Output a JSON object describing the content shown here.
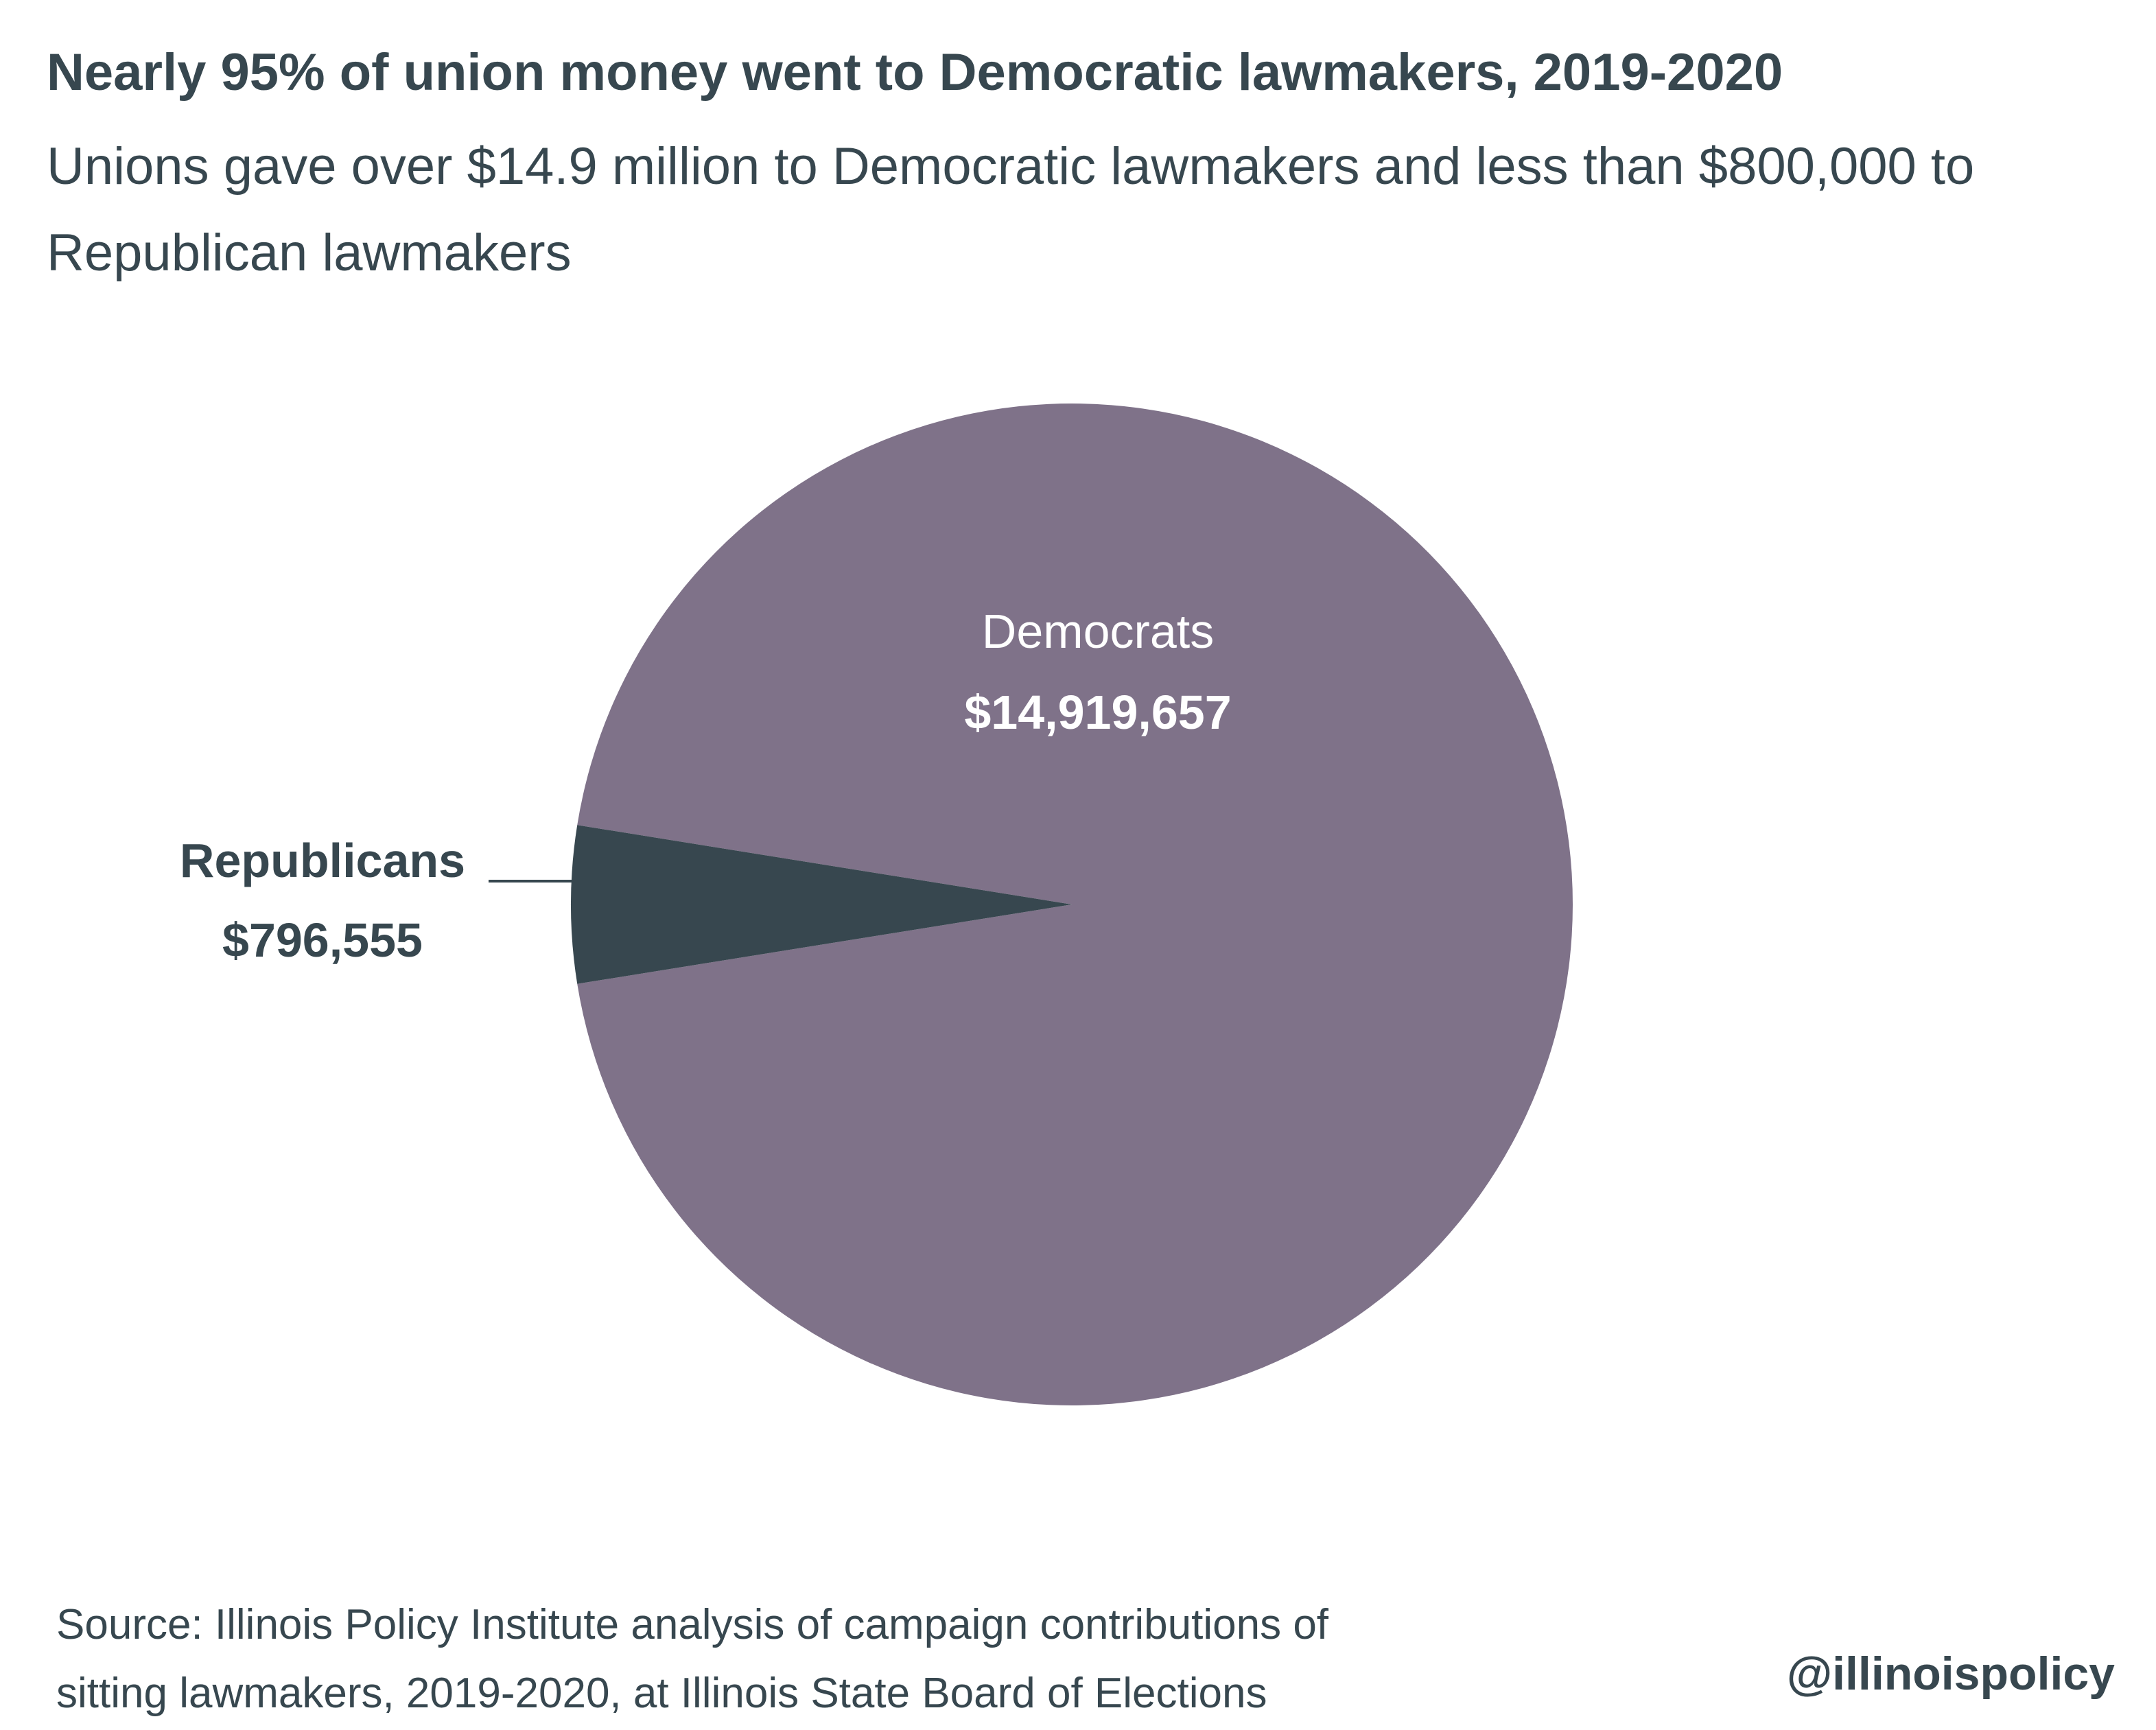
{
  "title": "Nearly 95% of union money went to Democratic lawmakers, 2019-2020",
  "subtitle": "Unions gave over $14.9 million to Democratic lawmakers and less than $800,000 to Republican lawmakers",
  "source": {
    "line1": "Source:  Illinois Policy Institute analysis of campaign contributions of",
    "line2": "sitting lawmakers, 2019-2020, at Illinois State Board of Elections"
  },
  "handle": "@illinoispolicy",
  "colors": {
    "democrats": "#7f7289",
    "republicans": "#37474f",
    "label_on_slice": "#ffffff",
    "text": "#37474f"
  },
  "chart_data": {
    "type": "pie",
    "slices": [
      {
        "name": "Democrats",
        "value": 14919657,
        "value_label": "$14,919,657"
      },
      {
        "name": "Republicans",
        "value": 796555,
        "value_label": "$796,555"
      }
    ]
  }
}
